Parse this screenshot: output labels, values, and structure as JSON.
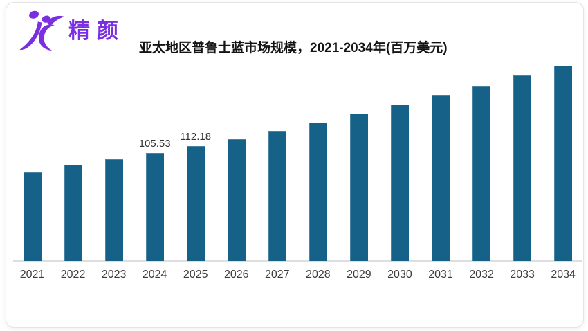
{
  "logo": {
    "brand_text": "精颜",
    "brand_color": "#7b2fe0",
    "icon": "jc-dancing-figure-logo"
  },
  "chart_data": {
    "type": "bar",
    "title": "亚太地区普鲁士蓝市场规模，2021-2034年(百万美元)",
    "categories": [
      "2021",
      "2022",
      "2023",
      "2024",
      "2025",
      "2026",
      "2027",
      "2028",
      "2029",
      "2030",
      "2031",
      "2032",
      "2033",
      "2034"
    ],
    "values": [
      86.8,
      93.8,
      99.2,
      105.53,
      112.18,
      119.0,
      126.9,
      134.8,
      143.8,
      153.0,
      162.0,
      170.9,
      181.0,
      190.7
    ],
    "data_labels": [
      "",
      "",
      "",
      "105.53",
      "112.18",
      "",
      "",
      "",
      "",
      "",
      "",
      "",
      "",
      ""
    ],
    "xlabel": "",
    "ylabel": "",
    "ylim": [
      0,
      200
    ],
    "bar_color": "#156188",
    "axis_line_color": "#dedede",
    "value_label_color": "#333333",
    "tick_label_color": "#3d3d3d",
    "grid": false,
    "legend": false
  }
}
